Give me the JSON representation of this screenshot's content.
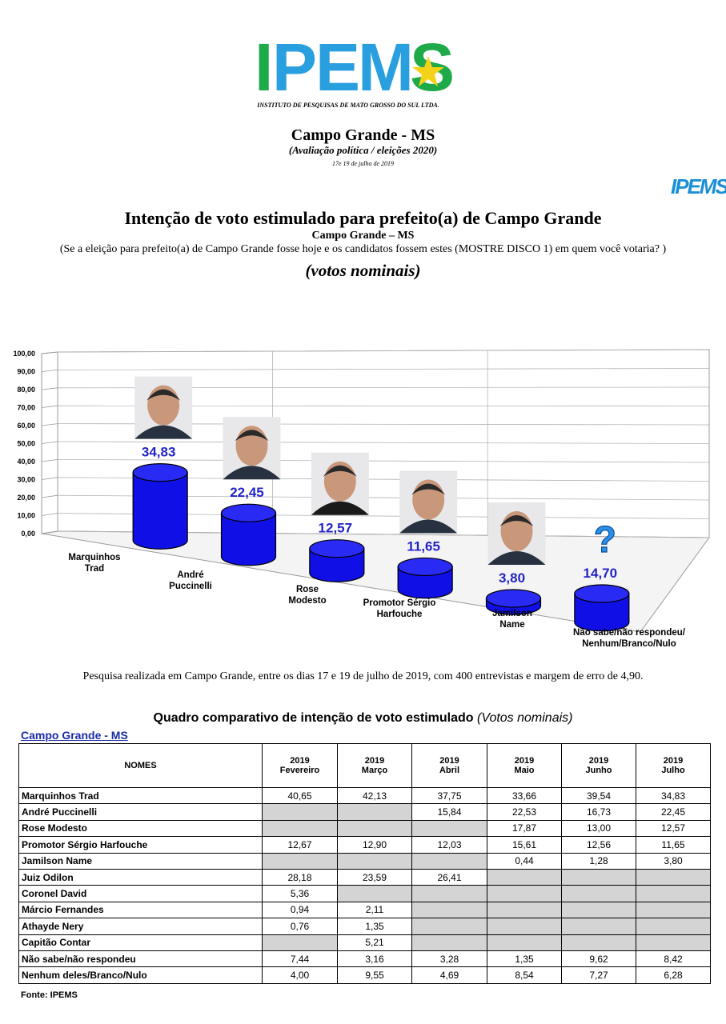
{
  "header": {
    "logo_letters": [
      "I",
      "P",
      "E",
      "M",
      "S"
    ],
    "logo_caption": "INSTITUTO DE PESQUISAS DE MATO GROSSO DO SUL LTDA.",
    "city_title": "Campo Grande - MS",
    "city_subtitle": "(Avaliação política / eleições 2020)",
    "date": "17e 19 de julho de 2019",
    "mini_logo": "IPEMS"
  },
  "chart_header": {
    "title": "Intenção de voto estimulado para prefeito(a) de Campo Grande",
    "subtitle": "Campo Grande – MS",
    "question": "(Se a eleição para prefeito(a) de Campo Grande fosse hoje e os candidatos fossem estes (MOSTRE DISCO 1) em quem você votaria? )",
    "votes_label": "(votos nominais)"
  },
  "chart_data": {
    "type": "bar",
    "categories": [
      "Marquinhos Trad",
      "André Puccinelli",
      "Rose Modesto",
      "Promotor Sérgio Harfouche",
      "Jamilson Name",
      "Não sabe/não respondeu/ Nenhum/Branco/Nulo"
    ],
    "category_lines": [
      [
        "Marquinhos",
        "Trad"
      ],
      [
        "André",
        "Puccinelli"
      ],
      [
        "Rose",
        "Modesto"
      ],
      [
        "Promotor Sérgio",
        "Harfouche"
      ],
      [
        "Jamilson",
        "Name"
      ],
      [
        "Não sabe/não respondeu/",
        "Nenhum/Branco/Nulo"
      ]
    ],
    "values": [
      34.83,
      22.45,
      12.57,
      11.65,
      3.8,
      14.7
    ],
    "value_labels": [
      "34,83",
      "22,45",
      "12,57",
      "11,65",
      "3,80",
      "14,70"
    ],
    "y_ticks": [
      "0,00",
      "10,00",
      "20,00",
      "30,00",
      "40,00",
      "50,00",
      "60,00",
      "70,00",
      "80,00",
      "90,00",
      "100,00"
    ],
    "ylim": [
      0,
      100
    ],
    "bar_color": "#1010e6",
    "label_color": "#2323c8",
    "grid": true
  },
  "note": "Pesquisa realizada em Campo Grande, entre os dias 17 e 19 de julho de 2019, com 400 entrevistas e margem de erro de 4,90.",
  "table": {
    "title_main": "Quadro comparativo de intenção de voto estimulado",
    "title_italic": "(Votos nominais)",
    "city": "Campo Grande - MS",
    "name_header": "NOMES",
    "columns": [
      {
        "year": "2019",
        "month": "Fevereiro"
      },
      {
        "year": "2019",
        "month": "Março"
      },
      {
        "year": "2019",
        "month": "Abril"
      },
      {
        "year": "2019",
        "month": "Maio"
      },
      {
        "year": "2019",
        "month": "Junho"
      },
      {
        "year": "2019",
        "month": "Julho"
      }
    ],
    "rows": [
      {
        "name": "Marquinhos Trad",
        "values": [
          "40,65",
          "42,13",
          "37,75",
          "33,66",
          "39,54",
          "34,83"
        ]
      },
      {
        "name": "André Puccinelli",
        "values": [
          "",
          "",
          "15,84",
          "22,53",
          "16,73",
          "22,45"
        ]
      },
      {
        "name": "Rose Modesto",
        "values": [
          "",
          "",
          "",
          "17,87",
          "13,00",
          "12,57"
        ]
      },
      {
        "name": "Promotor Sérgio Harfouche",
        "values": [
          "12,67",
          "12,90",
          "12,03",
          "15,61",
          "12,56",
          "11,65"
        ]
      },
      {
        "name": "Jamilson Name",
        "values": [
          "",
          "",
          "",
          "0,44",
          "1,28",
          "3,80"
        ]
      },
      {
        "name": "Juiz Odilon",
        "values": [
          "28,18",
          "23,59",
          "26,41",
          "",
          "",
          ""
        ]
      },
      {
        "name": "Coronel David",
        "values": [
          "5,36",
          "",
          "",
          "",
          "",
          ""
        ]
      },
      {
        "name": "Márcio Fernandes",
        "values": [
          "0,94",
          "2,11",
          "",
          "",
          "",
          ""
        ]
      },
      {
        "name": "Athayde Nery",
        "values": [
          "0,76",
          "1,35",
          "",
          "",
          "",
          ""
        ]
      },
      {
        "name": "Capitão Contar",
        "values": [
          "",
          "5,21",
          "",
          "",
          "",
          ""
        ]
      },
      {
        "name": "Não sabe/não respondeu",
        "values": [
          "7,44",
          "3,16",
          "3,28",
          "1,35",
          "9,62",
          "8,42"
        ]
      },
      {
        "name": "Nenhum deles/Branco/Nulo",
        "values": [
          "4,00",
          "9,55",
          "4,69",
          "8,54",
          "7,27",
          "6,28"
        ]
      }
    ],
    "source": "Fonte: IPEMS"
  }
}
